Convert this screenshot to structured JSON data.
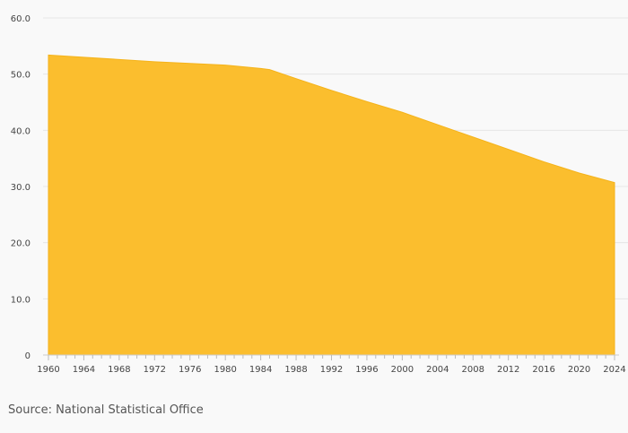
{
  "chart_data": {
    "type": "area",
    "title": "",
    "xlabel": "",
    "ylabel": "",
    "xlim": [
      1960,
      2024
    ],
    "ylim": [
      0,
      60
    ],
    "y_ticks": [
      0,
      10,
      20,
      30,
      40,
      50,
      60
    ],
    "y_tick_labels": [
      "0",
      "10.0",
      "20.0",
      "30.0",
      "40.0",
      "50.0",
      "60.0"
    ],
    "x_ticks": [
      1960,
      1964,
      1968,
      1972,
      1976,
      1980,
      1984,
      1988,
      1992,
      1996,
      2000,
      2004,
      2008,
      2012,
      2016,
      2020,
      2024
    ],
    "x_tick_labels": [
      "1960",
      "1964",
      "1968",
      "1972",
      "1976",
      "1980",
      "1984",
      "1988",
      "1992",
      "1996",
      "2000",
      "2004",
      "2008",
      "2012",
      "2016",
      "2020",
      "2024"
    ],
    "grid": "horizontal",
    "legend": "none",
    "series": [
      {
        "color": "#fbbe2e",
        "x": [
          1960,
          1964,
          1968,
          1972,
          1976,
          1980,
          1984,
          1985,
          1988,
          1992,
          1996,
          2000,
          2004,
          2008,
          2012,
          2016,
          2020,
          2024
        ],
        "values": [
          53.4,
          53.0,
          52.6,
          52.2,
          51.9,
          51.6,
          51.0,
          50.8,
          49.2,
          47.1,
          45.1,
          43.2,
          41.0,
          38.8,
          36.6,
          34.4,
          32.4,
          30.7
        ]
      }
    ]
  },
  "source_note": "Source: National Statistical Office"
}
